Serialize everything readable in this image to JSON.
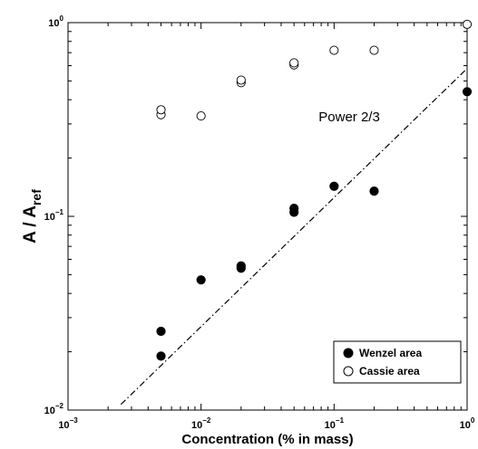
{
  "chart_data": {
    "type": "scatter",
    "xscale": "log",
    "yscale": "log",
    "xlim": [
      0.001,
      1
    ],
    "ylim": [
      0.01,
      1
    ],
    "xlabel": "Concentration (% in mass)",
    "ylabel": {
      "main": "A / A",
      "sub": "ref"
    },
    "x_ticks": [
      {
        "value": 0.001,
        "base": "10",
        "exp": "−3"
      },
      {
        "value": 0.01,
        "base": "10",
        "exp": "−2"
      },
      {
        "value": 0.1,
        "base": "10",
        "exp": "−1"
      },
      {
        "value": 1,
        "base": "10",
        "exp": "0"
      }
    ],
    "y_ticks": [
      {
        "value": 0.01,
        "base": "10",
        "exp": "−2"
      },
      {
        "value": 0.1,
        "base": "10",
        "exp": "−1"
      },
      {
        "value": 1,
        "base": "10",
        "exp": "0"
      }
    ],
    "grid": false,
    "legend_position": "bottom-right",
    "series": [
      {
        "name": "Wenzel area",
        "marker": "filled-circle",
        "color": "#000000",
        "x": [
          0.005,
          0.005,
          0.01,
          0.02,
          0.02,
          0.05,
          0.05,
          0.1,
          0.2,
          1.0
        ],
        "y": [
          0.019,
          0.0255,
          0.047,
          0.054,
          0.0555,
          0.105,
          0.11,
          0.143,
          0.135,
          0.44
        ]
      },
      {
        "name": "Cassie area",
        "marker": "open-circle",
        "color": "#000000",
        "x": [
          0.005,
          0.005,
          0.01,
          0.02,
          0.02,
          0.05,
          0.05,
          0.1,
          0.2,
          1.0
        ],
        "y": [
          0.335,
          0.355,
          0.33,
          0.49,
          0.505,
          0.605,
          0.62,
          0.72,
          0.72,
          0.98
        ]
      }
    ],
    "reference_line": {
      "style": "dash-dot",
      "color": "#000000",
      "x": [
        0.0025,
        1.0
      ],
      "y": [
        0.0107,
        0.58
      ]
    },
    "annotations": [
      {
        "text": "Power 2/3",
        "x": 0.13,
        "y": 0.31
      }
    ]
  }
}
